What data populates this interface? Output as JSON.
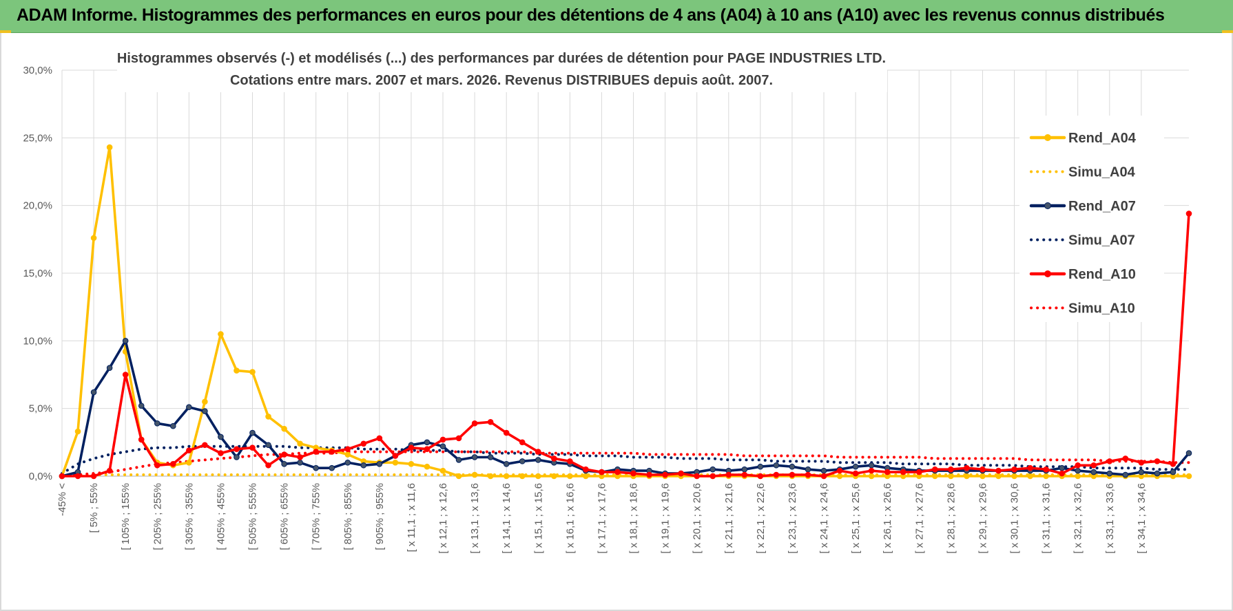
{
  "header": {
    "title": "ADAM Informe. Histogrammes des performances en euros pour des détentions de 4 ans (A04) à 10 ans (A10) avec les revenus connus distribués"
  },
  "chart_data": {
    "type": "line",
    "title_line1": "Histogrammes observés (-) et modélisés (...) des performances par durées de détention pour PAGE INDUSTRIES LTD.",
    "title_line2": "Cotations entre mars. 2007 et mars. 2026. Revenus DISTRIBUES depuis août. 2007.",
    "ylim": [
      0,
      30
    ],
    "y_ticks": [
      "0,0%",
      "5,0%",
      "10,0%",
      "15,0%",
      "20,0%",
      "25,0%",
      "30,0%"
    ],
    "x_labels": [
      "-45% <",
      "[ 5% ; 55%",
      "[ 105% ; 155%",
      "[ 205% ; 255%",
      "[ 305% ; 355%",
      "[ 405% ; 455%",
      "[ 505% ; 555%",
      "[ 605% ; 655%",
      "[ 705% ; 755%",
      "[ 805% ; 855%",
      "[ 905% ; 955%",
      "[ x 11,1 ; x 11,6",
      "[ x 12,1 ; x 12,6",
      "[ x 13,1 ; x 13,6",
      "[ x 14,1 ; x 14,6",
      "[ x 15,1 ; x 15,6",
      "[ x 16,1 ; x 16,6",
      "[ x 17,1 ; x 17,6",
      "[ x 18,1 ; x 18,6",
      "[ x 19,1 ; x 19,6",
      "[ x 20,1 ; x 20,6",
      "[ x 21,1 ; x 21,6",
      "[ x 22,1 ; x 22,6",
      "[ x 23,1 ; x 23,6",
      "[ x 24,1 ; x 24,6",
      "[ x 25,1 ; x 25,6",
      "[ x 26,1 ; x 26,6",
      "[ x 27,1 ; x 27,6",
      "[ x 28,1 ; x 28,6",
      "[ x 29,1 ; x 29,6",
      "[ x 30,1 ; x 30,6",
      "[ x 31,1 ; x 31,6",
      "[ x 32,1 ; x 32,6",
      "[ x 33,1 ; x 33,6",
      "[ x 34,1 ; x 34,6"
    ],
    "grid": true,
    "legend_position": "right",
    "series": [
      {
        "name": "Rend_A04",
        "color": "#FFC000",
        "style": "solid",
        "markers": true,
        "values": [
          0,
          3.3,
          17.6,
          24.3,
          9.2,
          2.7,
          1.0,
          0.8,
          1.0,
          5.5,
          10.5,
          7.8,
          7.7,
          4.4,
          3.5,
          2.4,
          2.1,
          1.9,
          1.6,
          1.1,
          1.0,
          1.0,
          0.9,
          0.7,
          0.4,
          0,
          0.1,
          0,
          0,
          0,
          0,
          0,
          0,
          0,
          0,
          0,
          0,
          0,
          0,
          0,
          0,
          0,
          0,
          0,
          0,
          0,
          0,
          0,
          0,
          0,
          0,
          0,
          0,
          0,
          0,
          0,
          0,
          0,
          0,
          0,
          0,
          0,
          0,
          0,
          0,
          0,
          0,
          0,
          0,
          0,
          0,
          0
        ]
      },
      {
        "name": "Simu_A04",
        "color": "#FFC000",
        "style": "dotted",
        "markers": false,
        "values": [
          0.1,
          0.1,
          0.1,
          0.1,
          0.1,
          0.1,
          0.1,
          0.1,
          0.1,
          0.1,
          0.1,
          0.1,
          0.1,
          0.1,
          0.1,
          0.1,
          0.1,
          0.1,
          0.1,
          0.1,
          0.1,
          0.1,
          0.1,
          0.1,
          0.1,
          0.1,
          0.1,
          0.1,
          0.1,
          0.1,
          0.1,
          0.1,
          0.1,
          0.1,
          0.1,
          0.1,
          0.1,
          0.1,
          0.1,
          0.1,
          0.1,
          0.1,
          0.1,
          0.1,
          0.1,
          0.1,
          0.1,
          0.1,
          0.1,
          0.1,
          0.1,
          0.1,
          0.1,
          0.1,
          0.1,
          0.1,
          0.1,
          0.1,
          0.1,
          0.1,
          0.1,
          0.1,
          0.1,
          0.1,
          0.1,
          0.1,
          0.1,
          0.1,
          0.1,
          0.1,
          0.1,
          0.1
        ]
      },
      {
        "name": "Rend_A07",
        "color": "#002060",
        "style": "solid",
        "markers": true,
        "values": [
          0,
          0.3,
          6.2,
          8.0,
          10.0,
          5.2,
          3.9,
          3.7,
          5.1,
          4.8,
          2.9,
          1.4,
          3.2,
          2.3,
          0.9,
          1.0,
          0.6,
          0.6,
          1.0,
          0.8,
          0.9,
          1.5,
          2.3,
          2.5,
          2.2,
          1.2,
          1.4,
          1.4,
          0.9,
          1.1,
          1.2,
          1.0,
          0.9,
          0.4,
          0.3,
          0.5,
          0.4,
          0.4,
          0.2,
          0.2,
          0.3,
          0.5,
          0.4,
          0.5,
          0.7,
          0.8,
          0.7,
          0.5,
          0.4,
          0.5,
          0.7,
          0.8,
          0.6,
          0.5,
          0.4,
          0.4,
          0.4,
          0.4,
          0.4,
          0.4,
          0.4,
          0.4,
          0.4,
          0.6,
          0.4,
          0.3,
          0.2,
          0.1,
          0.3,
          0.2,
          0.3,
          1.7
        ]
      },
      {
        "name": "Simu_A07",
        "color": "#002060",
        "style": "dotted",
        "markers": false,
        "values": [
          0.2,
          0.9,
          1.3,
          1.6,
          1.8,
          2.0,
          2.1,
          2.1,
          2.2,
          2.2,
          2.2,
          2.2,
          2.2,
          2.2,
          2.2,
          2.1,
          2.1,
          2.1,
          2.1,
          2.0,
          2.0,
          2.0,
          1.9,
          1.9,
          1.9,
          1.8,
          1.8,
          1.7,
          1.7,
          1.7,
          1.6,
          1.6,
          1.6,
          1.5,
          1.5,
          1.5,
          1.4,
          1.4,
          1.4,
          1.3,
          1.3,
          1.3,
          1.2,
          1.2,
          1.2,
          1.1,
          1.1,
          1.1,
          1.1,
          1.0,
          1.0,
          1.0,
          1.0,
          0.9,
          0.9,
          0.9,
          0.9,
          0.8,
          0.8,
          0.8,
          0.8,
          0.7,
          0.7,
          0.7,
          0.7,
          0.6,
          0.6,
          0.6,
          0.6,
          0.5,
          0.5,
          0.5
        ]
      },
      {
        "name": "Rend_A10",
        "color": "#FF0000",
        "style": "solid",
        "markers": true,
        "values": [
          0,
          0,
          0,
          0.4,
          7.5,
          2.7,
          0.8,
          0.9,
          1.9,
          2.3,
          1.7,
          2.0,
          2.1,
          0.8,
          1.6,
          1.4,
          1.8,
          1.8,
          2.0,
          2.4,
          2.8,
          1.5,
          2.1,
          2.0,
          2.7,
          2.8,
          3.9,
          4.0,
          3.2,
          2.5,
          1.8,
          1.3,
          1.1,
          0.5,
          0.3,
          0.3,
          0.2,
          0.1,
          0.1,
          0.2,
          0,
          0,
          0.1,
          0.1,
          0,
          0.1,
          0.1,
          0.1,
          0,
          0.4,
          0.2,
          0.4,
          0.3,
          0.3,
          0.3,
          0.5,
          0.5,
          0.6,
          0.5,
          0.4,
          0.5,
          0.6,
          0.5,
          0.2,
          0.8,
          0.8,
          1.1,
          1.3,
          1.0,
          1.1,
          0.9,
          19.4
        ]
      },
      {
        "name": "Simu_A10",
        "color": "#FF0000",
        "style": "dotted",
        "markers": false,
        "values": [
          0,
          0.1,
          0.2,
          0.3,
          0.5,
          0.7,
          0.9,
          1.0,
          1.1,
          1.2,
          1.3,
          1.4,
          1.5,
          1.6,
          1.6,
          1.7,
          1.7,
          1.7,
          1.8,
          1.8,
          1.8,
          1.8,
          1.8,
          1.8,
          1.8,
          1.8,
          1.8,
          1.8,
          1.8,
          1.8,
          1.7,
          1.7,
          1.7,
          1.7,
          1.7,
          1.7,
          1.7,
          1.6,
          1.6,
          1.6,
          1.6,
          1.6,
          1.6,
          1.5,
          1.5,
          1.5,
          1.5,
          1.5,
          1.5,
          1.4,
          1.4,
          1.4,
          1.4,
          1.4,
          1.4,
          1.3,
          1.3,
          1.3,
          1.3,
          1.3,
          1.3,
          1.2,
          1.2,
          1.2,
          1.2,
          1.2,
          1.1,
          1.1,
          1.1,
          1.1,
          1.0,
          1.0
        ]
      }
    ]
  }
}
